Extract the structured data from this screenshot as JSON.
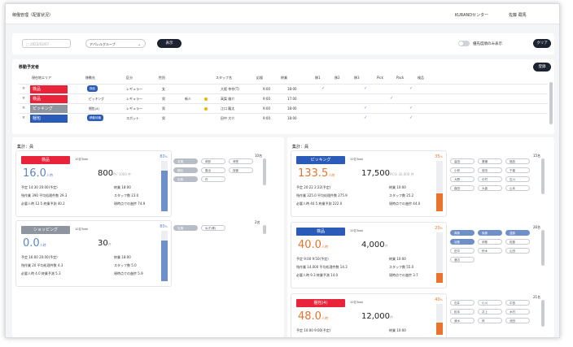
{
  "header": {
    "title": "稼働管理（配置状況）",
    "center": "KURANDセンター",
    "user": "佐藤 蔵馬"
  },
  "toolbar": {
    "date_placeholder": "2022/03/07",
    "group_select": "アパレルグループ",
    "display_button": "表示",
    "priority_toggle_label": "優先度順のみ表示",
    "clear_button": "クリア"
  },
  "schedule": {
    "title": "移動予定者",
    "register_button": "登録",
    "headers": [
      "現在地エリア",
      "移動先",
      "区分",
      "性別",
      "",
      "",
      "スタッフ名",
      "応援",
      "終業",
      "移1",
      "移2",
      "移3",
      "Pick",
      "Pack",
      "検品"
    ],
    "rows": [
      {
        "area": "検品",
        "area_color": "#e9243a",
        "dest": "検品",
        "kubun": "レギュラー",
        "sex": "女",
        "extra": "",
        "staff": "大阪 幸作(T)",
        "support": "9:00",
        "end": "18:00"
      },
      {
        "area": "検品",
        "area_color": "#e9243a",
        "dest": "ピッキング",
        "kubun": "レギュラー",
        "sex": "男",
        "extra": "新人",
        "staff": "高梨 雄介",
        "support": "9:00",
        "end": "17:00"
      },
      {
        "area": "ピッキング",
        "area_color": "#8f959e",
        "dest": "梱包(4)",
        "kubun": "レギュラー",
        "sex": "男",
        "extra": "",
        "staff": "江口 龍太",
        "support": "9:00",
        "end": "18:00"
      },
      {
        "area": "梱包",
        "area_color": "#2a5bb8",
        "dest": "移動待機",
        "kubun": "スポット",
        "sex": "男",
        "extra": "",
        "staff": "田中 大介",
        "support": "9:00",
        "end": "18:00"
      }
    ]
  },
  "left_panel": {
    "title": "集計：員"
  },
  "right_panel": {
    "title": "集計：員"
  },
  "left_cards": [
    {
      "tag": "検品",
      "tag_color": "#e9243a",
      "sub": "10名Total",
      "big": "16.0",
      "big_unit": "人時",
      "big_sub": "必要人時",
      "mid": "800",
      "mid_unit": "件",
      "mid_sub": "/ 1000 件",
      "l1": "予定 14:30  20:00(予定)",
      "l1r": "終業 18:00",
      "l2": "残作業 390  平均処理件数 29.3",
      "l2r": "スタッフ数 23.0",
      "l3": "必要人時 12.5  終業予測 40.2",
      "l3r": "現時点での進捗 74.9",
      "pct": "80",
      "pct_unit": "%",
      "fill": 0.8,
      "count": "10名",
      "chips": [
        "支援",
        "荷卸",
        "荷受",
        "梱包",
        "搬出",
        "保管",
        "出荷",
        "件"
      ]
    },
    {
      "tag": "ショッピング",
      "tag_color": "#8f959e",
      "sub": "10名Total",
      "big": "0.0",
      "big_unit": "人時",
      "big_sub": "必要人時",
      "mid": "30",
      "mid_unit": "件",
      "mid_sub": "",
      "l1": "予定 16:00  20:00(予定)",
      "l1r": "終業 18:00",
      "l2": "残作業 20  平均処理件数 4.3",
      "l2r": "スタッフ数 5.0",
      "l3": "必要人時 4.0  終業予測 5.3",
      "l3r": "現時点での進捗 5.9",
      "pct": "80",
      "pct_unit": "%",
      "fill": 0.8,
      "count": "2名",
      "chips": [
        "支援",
        "ねず(移)"
      ]
    }
  ],
  "right_cards": [
    {
      "tag": "ピッキング",
      "tag_color": "#2a5bb8",
      "sub": "10名Total",
      "big": "133.5",
      "big_unit": "人時",
      "big_sub": "必要人時",
      "mid": "17,500",
      "mid_unit": "PCS",
      "mid_sub": "/ 30,000 件",
      "l1": "予定 20:22  2:22(予定)",
      "l1r": "終業 10:00",
      "l2": "残作業 325.0  平均処理件数 275.9",
      "l2r": "スタッフ数 25.2",
      "l3": "必要人時 40.5  終業予測 222.0",
      "l3r": "現時点での進捗 44.0",
      "pct": "35",
      "pct_unit": "%",
      "fill": 0.35,
      "count": "15名",
      "chips": [
        "高田",
        "廣瀬",
        "福島",
        "小林",
        "前田",
        "千葉",
        "大野",
        "中村",
        "石川",
        "森田",
        "大森",
        "山本"
      ]
    },
    {
      "tag": "検品",
      "tag_color": "#2a5bb8",
      "sub": "10名Total",
      "big": "40.0",
      "big_unit": "人時",
      "big_sub": "必要人時",
      "mid": "4,000",
      "mid_unit": "件",
      "mid_sub": "",
      "l1": "予定 9:00  9:50(予定)",
      "l1r": "終業 10:00",
      "l2": "残作業 14,000  平均処理件数 14.3",
      "l2r": "スタッフ数 55.0",
      "l3": "必要人時 9.3  終業予測 14.0",
      "l3r": "現時点での進捗 3.7",
      "pct": "20",
      "pct_unit": "%",
      "fill": 0.2,
      "count": "26名",
      "chips": [
        "斉藤",
        "後藤",
        "遠藤",
        "近藤",
        "伊藤",
        "佐藤",
        "田中",
        "鈴木",
        "山田",
        "渡辺"
      ]
    },
    {
      "tag": "梱包(4)",
      "tag_color": "#e9243a",
      "sub": "10名Total",
      "big": "48.0",
      "big_unit": "人時",
      "big_sub": "必要人時",
      "mid": "12,000",
      "mid_unit": "件",
      "mid_sub": "",
      "l1": "予定 10:00  9:00(予定)",
      "l1r": "終業 10:00",
      "l2": "",
      "l2r": "",
      "l3": "",
      "l3r": "",
      "pct": "40",
      "pct_unit": "%",
      "fill": 0.4,
      "count": "21名",
      "chips": [
        "石井",
        "小川",
        "中島",
        "松本",
        "井上",
        "木村",
        "清水",
        "林",
        "池田"
      ]
    }
  ]
}
